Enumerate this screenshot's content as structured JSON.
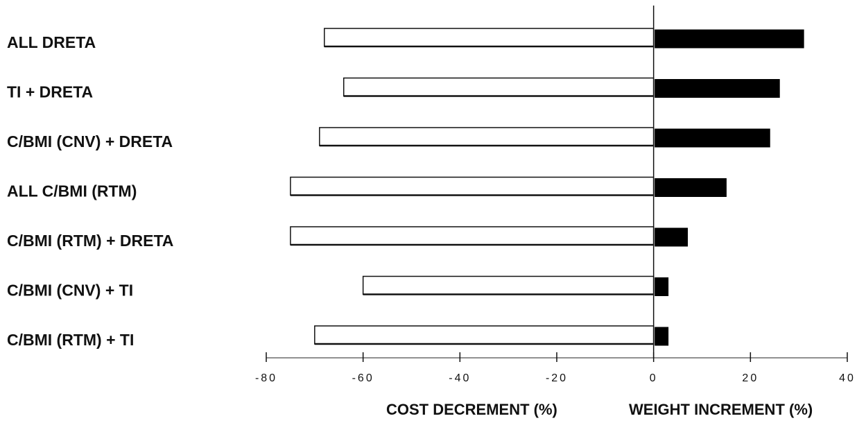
{
  "chart_data": {
    "type": "bar",
    "orientation": "horizontal",
    "categories": [
      "ALL DRETA",
      "TI + DRETA",
      "C/BMI (CNV) + DRETA",
      "ALL C/BMI (RTM)",
      "C/BMI (RTM) + DRETA",
      "C/BMI (CNV) + TI",
      "C/BMI (RTM) + TI"
    ],
    "series": [
      {
        "name": "COST DECREMENT (%)",
        "values": [
          -68,
          -64,
          -69,
          -75,
          -75,
          -60,
          -70
        ],
        "color": "#ffffff",
        "stroke": "#111111"
      },
      {
        "name": "WEIGHT INCREMENT (%)",
        "values": [
          31,
          26,
          24,
          15,
          7,
          3,
          3
        ],
        "color": "#000000",
        "stroke": "#000000"
      }
    ],
    "xlim": [
      -80,
      40
    ],
    "xticks": [
      -80,
      -60,
      -40,
      -20,
      0,
      20,
      40
    ],
    "tick_labels": [
      "-80",
      "-60",
      "-40",
      "-20",
      "0",
      "20",
      "40"
    ],
    "xlabel_left": "COST DECREMENT (%)",
    "xlabel_right": "WEIGHT INCREMENT (%)",
    "title": "",
    "grid": false,
    "legend": "none"
  }
}
